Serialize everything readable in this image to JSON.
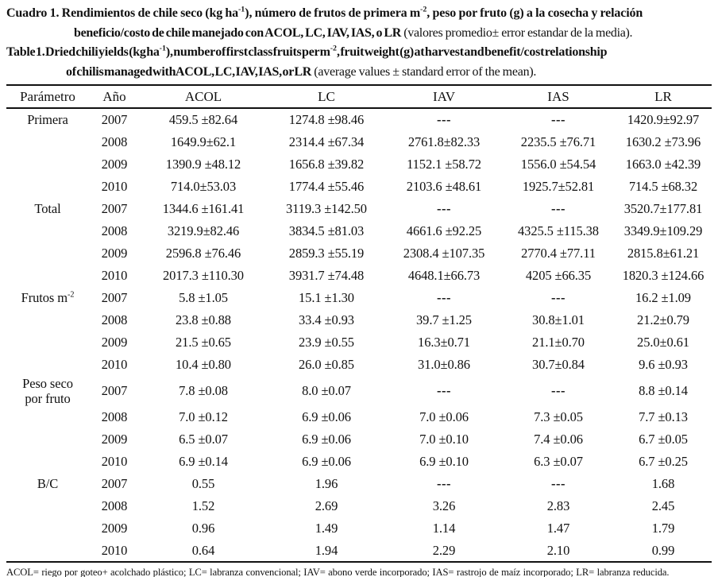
{
  "caption_es": {
    "line1": {
      "a": "Cuadro 1. Rendimientos de chile seco (kg ha",
      "sup1": "-1",
      "b": "), número de frutos de primera m",
      "sup2": "-2",
      "c": ", peso por fruto (g) a la cosecha y relación"
    },
    "line2": {
      "bold": "beneficio/costo de chile manejado con ACOL, LC, IAV, IAS, o LR",
      "regular": " (valores promedio± error estandar de la media)."
    }
  },
  "caption_en": {
    "line1": {
      "a": "Table 1. Dried chili yields (kg ha",
      "sup1": "-1",
      "b": "), number of first class fruits per m",
      "sup2": "-2",
      "c": ", fruit weight (g) at harvest and benefit/cost relationship"
    },
    "line2": {
      "bold": "of chilis managed with ACOL, LC, IAV, IAS, or LR",
      "regular": " (average values ± standard error of the mean)."
    }
  },
  "table": {
    "columns": [
      "Parámetro",
      "Año",
      "ACOL",
      "LC",
      "IAV",
      "IAS",
      "LR"
    ],
    "groups": [
      {
        "label": {
          "line1": "Primera"
        },
        "rows": [
          {
            "year": "2007",
            "values": [
              "459.5 ±82.64",
              "1274.8 ±98.46",
              "---",
              "---",
              "1420.9±92.97"
            ]
          },
          {
            "year": "2008",
            "values": [
              "1649.9±62.1",
              "2314.4 ±67.34",
              "2761.8±82.33",
              "2235.5 ±76.71",
              "1630.2 ±73.96"
            ]
          },
          {
            "year": "2009",
            "values": [
              "1390.9 ±48.12",
              "1656.8 ±39.82",
              "1152.1 ±58.72",
              "1556.0 ±54.54",
              "1663.0 ±42.39"
            ]
          },
          {
            "year": "2010",
            "values": [
              "714.0±53.03",
              "1774.4 ±55.46",
              "2103.6 ±48.61",
              "1925.7±52.81",
              "714.5 ±68.32"
            ]
          }
        ]
      },
      {
        "label": {
          "line1": "Total"
        },
        "rows": [
          {
            "year": "2007",
            "values": [
              "1344.6 ±161.41",
              "3119.3 ±142.50",
              "---",
              "---",
              "3520.7±177.81"
            ]
          },
          {
            "year": "2008",
            "values": [
              "3219.9±82.46",
              "3834.5 ±81.03",
              "4661.6 ±92.25",
              "4325.5 ±115.38",
              "3349.9±109.29"
            ]
          },
          {
            "year": "2009",
            "values": [
              "2596.8 ±76.46",
              "2859.3 ±55.19",
              "2308.4 ±107.35",
              "2770.4 ±77.11",
              "2815.8±61.21"
            ]
          },
          {
            "year": "2010",
            "values": [
              "2017.3 ±110.30",
              "3931.7 ±74.48",
              "4648.1±66.73",
              "4205 ±66.35",
              "1820.3 ±124.66"
            ]
          }
        ]
      },
      {
        "label": {
          "line1": "Frutos m",
          "sup": "-2"
        },
        "rows": [
          {
            "year": "2007",
            "values": [
              "5.8 ±1.05",
              "15.1 ±1.30",
              "---",
              "---",
              "16.2 ±1.09"
            ]
          },
          {
            "year": "2008",
            "values": [
              "23.8 ±0.88",
              "33.4 ±0.93",
              "39.7 ±1.25",
              "30.8±1.01",
              "21.2±0.79"
            ]
          },
          {
            "year": "2009",
            "values": [
              "21.5 ±0.65",
              "23.9 ±0.55",
              "16.3±0.71",
              "21.1±0.70",
              "25.0±0.61"
            ]
          },
          {
            "year": "2010",
            "values": [
              "10.4 ±0.80",
              "26.0 ±0.85",
              "31.0±0.86",
              "30.7±0.84",
              "9.6 ±0.93"
            ]
          }
        ]
      },
      {
        "label": {
          "line1": "Peso seco",
          "line2": "por fruto"
        },
        "rows": [
          {
            "year": "2007",
            "values": [
              "7.8 ±0.08",
              "8.0 ±0.07",
              "---",
              "---",
              "8.8 ±0.14"
            ]
          },
          {
            "year": "2008",
            "values": [
              "7.0 ±0.12",
              "6.9 ±0.06",
              "7.0 ±0.06",
              "7.3 ±0.05",
              "7.7 ±0.13"
            ]
          },
          {
            "year": "2009",
            "values": [
              "6.5 ±0.07",
              "6.9 ±0.06",
              "7.0 ±0.10",
              "7.4 ±0.06",
              "6.7 ±0.05"
            ]
          },
          {
            "year": "2010",
            "values": [
              "6.9 ±0.14",
              "6.9 ±0.06",
              "6.9 ±0.10",
              "6.3 ±0.07",
              "6.7 ±0.25"
            ]
          }
        ]
      },
      {
        "label": {
          "line1": "B/C"
        },
        "rows": [
          {
            "year": "2007",
            "values": [
              "0.55",
              "1.96",
              "---",
              "---",
              "1.68"
            ]
          },
          {
            "year": "2008",
            "values": [
              "1.52",
              "2.69",
              "3.26",
              "2.83",
              "2.45"
            ]
          },
          {
            "year": "2009",
            "values": [
              "0.96",
              "1.49",
              "1.14",
              "1.47",
              "1.79"
            ]
          },
          {
            "year": "2010",
            "values": [
              "0.64",
              "1.94",
              "2.29",
              "2.10",
              "0.99"
            ]
          }
        ]
      }
    ]
  },
  "footnote": {
    "text": "ACOL= riego por goteo+ acolchado plástico; LC= labranza convencional; IAV= abono verde incorporado; IAS= rastrojo de maíz incorporado; LR= labranza reducida."
  }
}
